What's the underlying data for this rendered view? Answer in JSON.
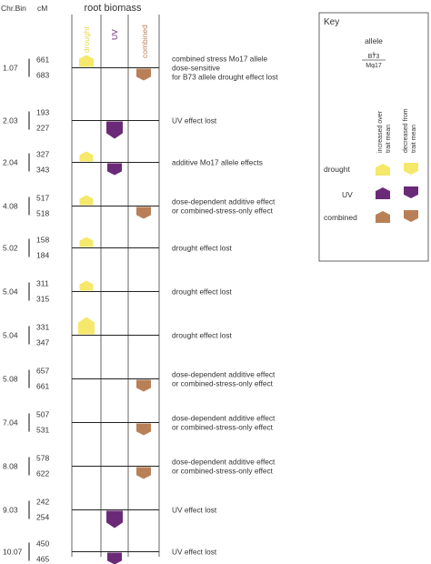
{
  "header": {
    "chr_bin_label": "Chr.Bin",
    "cm_label": "cM",
    "title": "root biomass",
    "columns": [
      {
        "label": "drought",
        "color": "#f5e86a"
      },
      {
        "label": "UV",
        "color": "#6b2a78"
      },
      {
        "label": "combined",
        "color": "#b98058"
      }
    ]
  },
  "colors": {
    "drought": "#f5e86a",
    "uv": "#6b2a78",
    "combined": "#b98058"
  },
  "rows": [
    {
      "bin": "1.07",
      "cm_top": "661",
      "cm_bottom": "683",
      "desc": [
        "combined stress Mo17 allele",
        "dose-sensitive",
        "for B73 allele drought effect lost"
      ],
      "markers": [
        {
          "col": 0,
          "dir": "up",
          "size": "m"
        },
        {
          "col": 2,
          "dir": "down",
          "size": "m"
        }
      ]
    },
    {
      "bin": "2.03",
      "cm_top": "193",
      "cm_bottom": "227",
      "desc": [
        "UV effect lost"
      ],
      "markers": [
        {
          "col": 1,
          "dir": "down",
          "size": "l"
        }
      ]
    },
    {
      "bin": "2.04",
      "cm_top": "327",
      "cm_bottom": "343",
      "desc": [
        "additive Mo17 allele effects"
      ],
      "markers": [
        {
          "col": 0,
          "dir": "up",
          "size": "s"
        },
        {
          "col": 1,
          "dir": "down",
          "size": "m"
        }
      ]
    },
    {
      "bin": "4.08",
      "cm_top": "517",
      "cm_bottom": "518",
      "desc": [
        "dose-dependent additive effect",
        "or combined-stress-only effect"
      ],
      "markers": [
        {
          "col": 0,
          "dir": "up",
          "size": "s"
        },
        {
          "col": 2,
          "dir": "down",
          "size": "m"
        }
      ]
    },
    {
      "bin": "5.02",
      "cm_top": "158",
      "cm_bottom": "184",
      "desc": [
        "drought effect lost"
      ],
      "markers": [
        {
          "col": 0,
          "dir": "up",
          "size": "s"
        }
      ]
    },
    {
      "bin": "5.04",
      "cm_top": "311",
      "cm_bottom": "315",
      "desc": [
        "drought effect lost"
      ],
      "markers": [
        {
          "col": 0,
          "dir": "up",
          "size": "s"
        }
      ]
    },
    {
      "bin": "5.04",
      "cm_top": "331",
      "cm_bottom": "347",
      "desc": [
        "drought effect lost"
      ],
      "markers": [
        {
          "col": 0,
          "dir": "up",
          "size": "l"
        }
      ]
    },
    {
      "bin": "5.08",
      "cm_top": "657",
      "cm_bottom": "661",
      "desc": [
        "dose-dependent additive effect",
        "or combined-stress-only effect"
      ],
      "markers": [
        {
          "col": 2,
          "dir": "down",
          "size": "m"
        }
      ]
    },
    {
      "bin": "7.04",
      "cm_top": "507",
      "cm_bottom": "531",
      "desc": [
        "dose-dependent additive effect",
        "or combined-stress-only effect"
      ],
      "markers": [
        {
          "col": 2,
          "dir": "down",
          "size": "m"
        }
      ]
    },
    {
      "bin": "8.08",
      "cm_top": "578",
      "cm_bottom": "622",
      "desc": [
        "dose-dependent additive effect",
        "or combined-stress-only effect"
      ],
      "markers": [
        {
          "col": 2,
          "dir": "down",
          "size": "m"
        }
      ]
    },
    {
      "bin": "9.03",
      "cm_top": "242",
      "cm_bottom": "254",
      "desc": [
        "UV effect lost"
      ],
      "markers": [
        {
          "col": 1,
          "dir": "down",
          "size": "l"
        }
      ]
    },
    {
      "bin": "10.07",
      "cm_top": "450",
      "cm_bottom": "465",
      "desc": [
        "UV effect lost"
      ],
      "markers": [
        {
          "col": 1,
          "dir": "down",
          "size": "m"
        }
      ]
    }
  ],
  "key": {
    "title": "Key",
    "allele_label": "allele",
    "allele_top": "B73",
    "allele_bottom": "Mo17",
    "increased_label": [
      "increased over",
      "trait mean"
    ],
    "decreased_label": [
      "decreased from",
      "trait mean"
    ],
    "items": [
      {
        "label": "drought",
        "color": "#f5e86a"
      },
      {
        "label": "UV",
        "color": "#6b2a78"
      },
      {
        "label": "combined",
        "color": "#b98058"
      }
    ]
  }
}
